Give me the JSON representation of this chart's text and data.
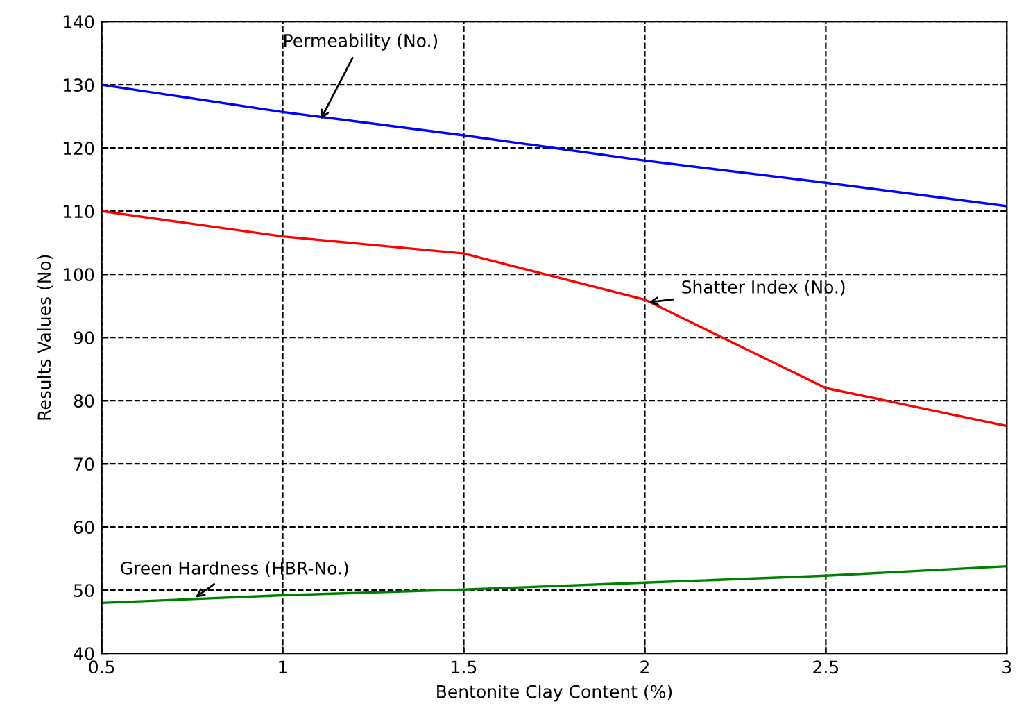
{
  "chart_data": {
    "type": "line",
    "xlabel": "Bentonite Clay Content (%)",
    "ylabel": "Results Values (No)",
    "x": [
      0.5,
      1,
      1.5,
      2,
      2.5,
      3
    ],
    "series": [
      {
        "color": "#0000ff",
        "values": [
          130,
          125.7,
          122,
          118,
          114.5,
          110.8
        ]
      },
      {
        "color": "#ff0000",
        "values": [
          110,
          106,
          103.3,
          96,
          82,
          76
        ]
      },
      {
        "color": "#008000",
        "values": [
          48,
          49.2,
          50.1,
          51.2,
          52.3,
          53.8
        ]
      }
    ],
    "annotations": [
      {
        "text": "Permeability (No.)",
        "x": 1.1,
        "y": 124
      },
      {
        "text": "Shatter Index (No.)",
        "x": 2.0,
        "y": 95.5
      },
      {
        "text": "Green Hardness (HBR-No.)",
        "x": 0.75,
        "y": 48.5
      }
    ],
    "xlim": [
      0.5,
      3
    ],
    "xticks": [
      0.5,
      1,
      1.5,
      2,
      2.5,
      3
    ],
    "ylim": [
      40,
      140
    ],
    "yticks": [
      40,
      50,
      60,
      70,
      80,
      90,
      100,
      110,
      120,
      130,
      140
    ],
    "grid": true,
    "marker": "none",
    "line_style": "solid"
  }
}
